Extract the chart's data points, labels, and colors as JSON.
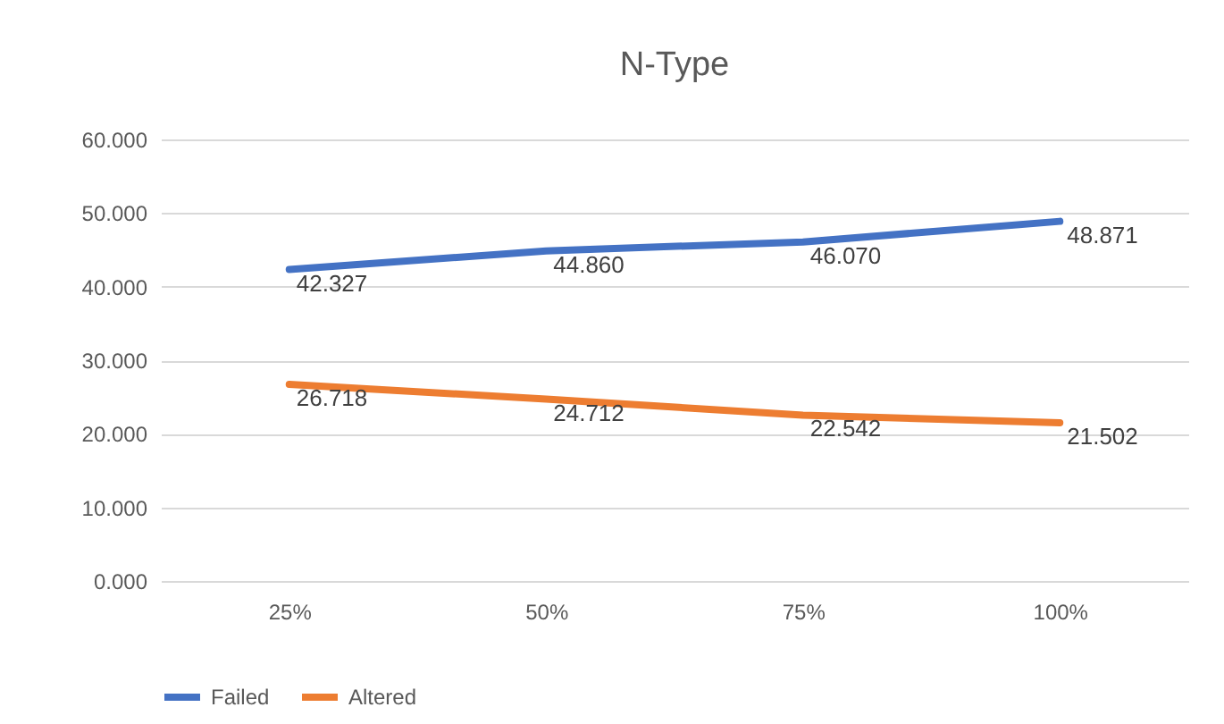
{
  "chart_data": {
    "type": "line",
    "title": "N-Type",
    "categories": [
      "25%",
      "50%",
      "75%",
      "100%"
    ],
    "series": [
      {
        "name": "Failed",
        "color": "#4472c4",
        "values": [
          42.327,
          44.86,
          46.07,
          48.871
        ],
        "value_labels": [
          "42.327",
          "44.860",
          "46.070",
          "48.871"
        ]
      },
      {
        "name": "Altered",
        "color": "#ed7d31",
        "values": [
          26.718,
          24.712,
          22.542,
          21.502
        ],
        "value_labels": [
          "26.718",
          "24.712",
          "22.542",
          "21.502"
        ]
      }
    ],
    "ylim": [
      0,
      60
    ],
    "yticks": [
      {
        "value": 0,
        "label": "0.000"
      },
      {
        "value": 10,
        "label": "10.000"
      },
      {
        "value": 20,
        "label": "20.000"
      },
      {
        "value": 30,
        "label": "30.000"
      },
      {
        "value": 40,
        "label": "40.000"
      },
      {
        "value": 50,
        "label": "50.000"
      },
      {
        "value": 60,
        "label": "60.000"
      }
    ],
    "grid": "y",
    "legend": "bottom"
  }
}
